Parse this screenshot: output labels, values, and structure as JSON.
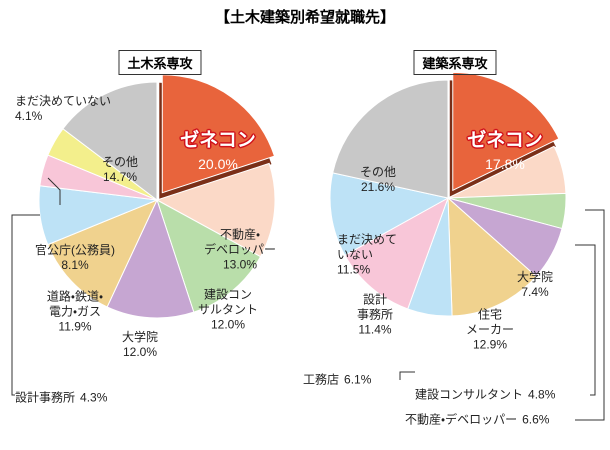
{
  "title": "【土木建築別希望就職先】",
  "chart_data": [
    {
      "type": "pie",
      "title": "土木系専攻",
      "categories": [
        "ゼネコン",
        "不動産・\nデベロッパー",
        "建設コン\nサルタント",
        "大学院",
        "道路・鉄道・\n電力・ガス",
        "官公庁(公務員)",
        "設計事務所",
        "まだ決めていない",
        "その他"
      ],
      "values": [
        20.0,
        13.0,
        12.0,
        12.0,
        11.9,
        8.1,
        4.3,
        4.1,
        14.7
      ],
      "value_labels": [
        "20.0%",
        "13.0%",
        "12.0%",
        "12.0%",
        "11.9%",
        "8.1%",
        "4.3%",
        "4.1%",
        "14.7%"
      ],
      "colors": [
        "#e8643c",
        "#fbd9c7",
        "#b9deaa",
        "#c6a6d2",
        "#f0d28e",
        "#bde2f6",
        "#f8c6d8",
        "#f3ef8c",
        "#c8c8c8"
      ]
    },
    {
      "type": "pie",
      "title": "建築系専攻",
      "categories": [
        "ゼネコン",
        "不動産・デベロッパー",
        "建設コンサルタント",
        "大学院",
        "住宅\nメーカー",
        "工務店",
        "設計\n事務所",
        "まだ決めて\nいない",
        "その他"
      ],
      "values": [
        17.8,
        6.6,
        4.8,
        7.4,
        12.9,
        6.1,
        11.4,
        11.5,
        21.6
      ],
      "value_labels": [
        "17.8%",
        "6.6%",
        "4.8%",
        "7.4%",
        "12.9%",
        "6.1%",
        "11.4%",
        "11.5%",
        "21.6%"
      ],
      "colors": [
        "#e8643c",
        "#fbd9c7",
        "#b9deaa",
        "#c6a6d2",
        "#f0d28e",
        "#bde2f6",
        "#f8c6d8",
        "#bde2f6",
        "#c8c8c8"
      ]
    }
  ]
}
